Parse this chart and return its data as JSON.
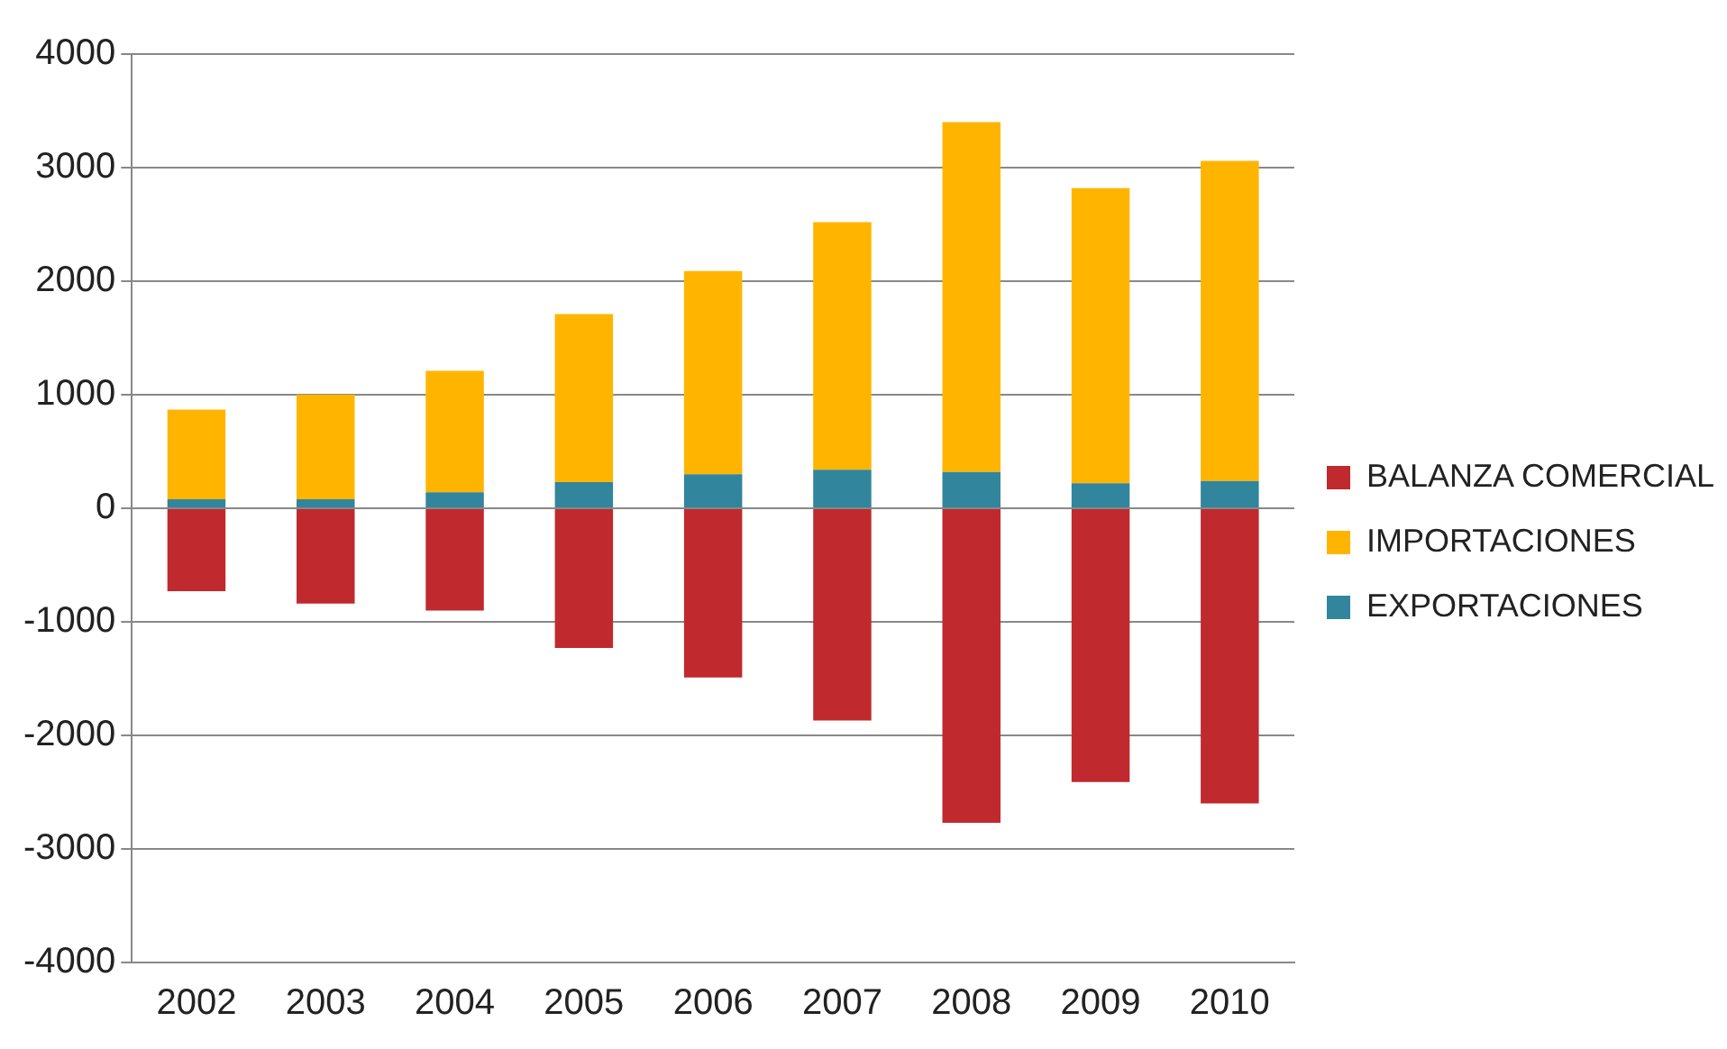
{
  "chart_data": {
    "type": "bar",
    "stacked": true,
    "categories": [
      "2002",
      "2003",
      "2004",
      "2005",
      "2006",
      "2007",
      "2008",
      "2009",
      "2010"
    ],
    "series": [
      {
        "name": "EXPORTACIONES",
        "color": "#31859c",
        "values": [
          80,
          80,
          140,
          230,
          300,
          340,
          320,
          220,
          240
        ]
      },
      {
        "name": "IMPORTACIONES",
        "color": "#ffb500",
        "values": [
          790,
          920,
          1070,
          1480,
          1790,
          2180,
          3080,
          2600,
          2820
        ]
      },
      {
        "name": "BALANZA COMERCIAL",
        "color": "#c0292e",
        "values": [
          -730,
          -840,
          -900,
          -1230,
          -1490,
          -1870,
          -2770,
          -2410,
          -2600
        ]
      }
    ],
    "ylim": [
      -4000,
      4000
    ],
    "yticks": [
      -4000,
      -3000,
      -2000,
      -1000,
      0,
      1000,
      2000,
      3000,
      4000
    ],
    "grid": "y",
    "legend": "right"
  }
}
